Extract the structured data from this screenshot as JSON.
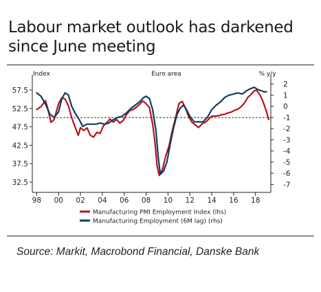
{
  "title": "Labour market outlook has darkened since June meeting",
  "source": "Source: Markit, Macrobond Financial, Danske Bank",
  "chart_data": {
    "type": "line",
    "title": "Labour market outlook has darkened since June meeting",
    "left_axis_label": "Index",
    "right_axis_label": "% y/y",
    "annotation": "Euro area",
    "x_ticks": [
      "98",
      "00",
      "02",
      "04",
      "06",
      "08",
      "10",
      "12",
      "14",
      "16",
      "18"
    ],
    "x_tick_values": [
      1998,
      2000,
      2002,
      2004,
      2006,
      2008,
      2010,
      2012,
      2014,
      2016,
      2018
    ],
    "xlim": [
      1997.6,
      2019.4
    ],
    "y_left_ticks": [
      "57.5",
      "52.5",
      "47.5",
      "42.5",
      "37.5",
      "32.5"
    ],
    "y_left_tick_values": [
      57.5,
      52.5,
      47.5,
      42.5,
      37.5,
      32.5
    ],
    "y_left_lim": [
      31.2,
      60.1
    ],
    "y_right_ticks": [
      "2",
      "1",
      "0",
      "-1",
      "-2",
      "-3",
      "-4",
      "-5",
      "-6",
      "-7"
    ],
    "y_right_tick_values": [
      2,
      1,
      0,
      -1,
      -2,
      -3,
      -4,
      -5,
      -6,
      -7
    ],
    "y_right_lim": [
      -7.22,
      2.32
    ],
    "reference_line_left": 50,
    "series": [
      {
        "name": "Manufacturing PMI Employment Index (lhs)",
        "axis": "left",
        "color": "#b5121b",
        "x": [
          1998.0,
          1998.4,
          1998.8,
          1999.0,
          1999.3,
          1999.6,
          2000.0,
          2000.3,
          2000.6,
          2000.9,
          2001.2,
          2001.5,
          2001.8,
          2002.0,
          2002.3,
          2002.6,
          2002.9,
          2003.2,
          2003.5,
          2003.8,
          2004.1,
          2004.4,
          2004.7,
          2005.0,
          2005.3,
          2005.6,
          2005.9,
          2006.2,
          2006.5,
          2006.8,
          2007.1,
          2007.4,
          2007.7,
          2008.0,
          2008.3,
          2008.6,
          2008.8,
          2009.0,
          2009.2,
          2009.5,
          2009.8,
          2010.1,
          2010.4,
          2010.7,
          2011.0,
          2011.3,
          2011.6,
          2011.9,
          2012.2,
          2012.5,
          2012.8,
          2013.1,
          2013.4,
          2013.7,
          2014.0,
          2014.3,
          2014.6,
          2014.9,
          2015.2,
          2015.5,
          2015.8,
          2016.1,
          2016.4,
          2016.7,
          2017.0,
          2017.3,
          2017.6,
          2017.9,
          2018.1,
          2018.4,
          2018.7,
          2019.0,
          2019.2
        ],
        "values": [
          52.2,
          53.0,
          54.6,
          52.6,
          48.7,
          49.5,
          53.8,
          55.4,
          55.0,
          53.2,
          50.0,
          47.5,
          45.2,
          47.3,
          46.5,
          47.2,
          45.2,
          44.7,
          46.0,
          45.7,
          47.8,
          48.6,
          49.6,
          48.8,
          49.5,
          48.5,
          49.2,
          50.8,
          51.9,
          52.2,
          52.8,
          53.6,
          54.5,
          53.8,
          52.8,
          48.2,
          43.5,
          37.0,
          34.3,
          36.0,
          39.6,
          42.4,
          46.5,
          50.0,
          53.8,
          54.4,
          52.6,
          50.2,
          48.7,
          48.0,
          47.3,
          48.3,
          48.7,
          49.5,
          50.4,
          50.4,
          50.5,
          50.8,
          50.9,
          51.3,
          51.5,
          52.0,
          52.3,
          53.0,
          54.0,
          55.5,
          56.3,
          57.3,
          57.4,
          56.2,
          54.2,
          51.7,
          49.5
        ]
      },
      {
        "name": "Manufacturing Employment (6M lag) (rhs)",
        "axis": "right",
        "color": "#123a60",
        "x": [
          1998.0,
          1998.4,
          1998.8,
          1999.2,
          1999.6,
          2000.0,
          2000.3,
          2000.6,
          2000.9,
          2001.2,
          2001.5,
          2001.9,
          2002.2,
          2002.6,
          2003.0,
          2003.4,
          2003.8,
          2004.2,
          2004.6,
          2005.0,
          2005.4,
          2005.8,
          2006.2,
          2006.6,
          2007.0,
          2007.4,
          2007.8,
          2008.0,
          2008.3,
          2008.6,
          2008.9,
          2009.1,
          2009.3,
          2009.6,
          2009.9,
          2010.2,
          2010.5,
          2010.8,
          2011.1,
          2011.4,
          2011.7,
          2012.0,
          2012.4,
          2012.8,
          2013.2,
          2013.6,
          2014.0,
          2014.4,
          2014.8,
          2015.2,
          2015.6,
          2016.0,
          2016.4,
          2016.8,
          2017.2,
          2017.6,
          2017.9,
          2018.2,
          2018.5,
          2018.8,
          2019.0
        ],
        "values": [
          1.2,
          0.9,
          0.2,
          -0.7,
          -1.0,
          -0.5,
          0.7,
          1.2,
          1.0,
          0.0,
          -0.6,
          -1.2,
          -1.8,
          -1.6,
          -1.6,
          -1.6,
          -1.5,
          -1.6,
          -1.5,
          -1.2,
          -1.0,
          -0.9,
          -0.6,
          -0.2,
          0.1,
          0.4,
          0.8,
          0.9,
          0.7,
          -0.3,
          -2.2,
          -4.5,
          -6.1,
          -5.8,
          -5.0,
          -3.4,
          -2.0,
          -0.8,
          -0.2,
          0.1,
          -0.3,
          -0.9,
          -1.4,
          -1.4,
          -1.4,
          -1.0,
          -0.3,
          0.1,
          0.4,
          0.8,
          1.0,
          1.1,
          1.2,
          1.1,
          1.4,
          1.6,
          1.7,
          1.5,
          1.4,
          1.3,
          1.3
        ]
      }
    ]
  }
}
